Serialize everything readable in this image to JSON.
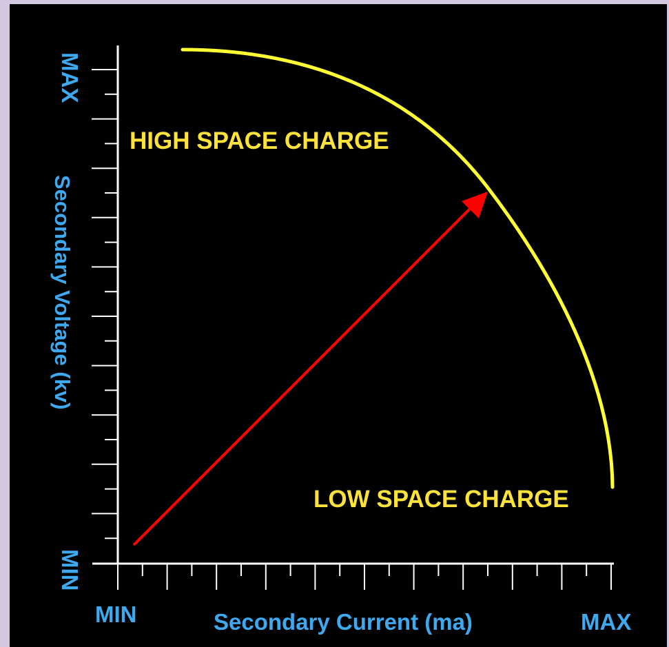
{
  "colors": {
    "background": "#000000",
    "frame": "#d2c8e0",
    "axis": "#ffffff",
    "axis_label": "#3fa9ef",
    "region_label": "#fde23a",
    "curve": "#ffff33",
    "arrow": "#ff0000"
  },
  "y_axis": {
    "label": "Secondary Voltage (kv)",
    "max_label": "MAX",
    "min_label": "MIN"
  },
  "x_axis": {
    "label": "Secondary Current (ma)",
    "min_label": "MIN",
    "max_label": "MAX"
  },
  "regions": {
    "high": "HIGH SPACE CHARGE",
    "low": "LOW SPACE CHARGE"
  }
}
